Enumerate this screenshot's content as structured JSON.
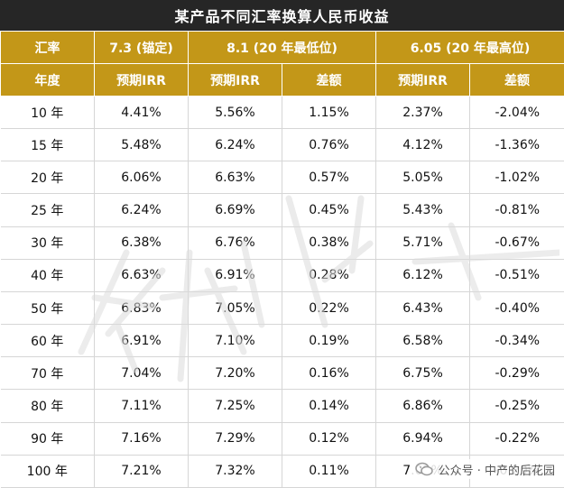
{
  "title": "某产品不同汇率换算人民币收益",
  "header": {
    "row1": [
      "汇率",
      "7.3 (锚定)",
      "8.1 (20 年最低位)",
      "6.05 (20 年最高位)"
    ],
    "row2": [
      "年度",
      "预期IRR",
      "预期IRR",
      "差额",
      "预期IRR",
      "差额"
    ]
  },
  "rows": [
    [
      "10 年",
      "4.41%",
      "5.56%",
      "1.15%",
      "2.37%",
      "-2.04%"
    ],
    [
      "15 年",
      "5.48%",
      "6.24%",
      "0.76%",
      "4.12%",
      "-1.36%"
    ],
    [
      "20 年",
      "6.06%",
      "6.63%",
      "0.57%",
      "5.05%",
      "-1.02%"
    ],
    [
      "25 年",
      "6.24%",
      "6.69%",
      "0.45%",
      "5.43%",
      "-0.81%"
    ],
    [
      "30 年",
      "6.38%",
      "6.76%",
      "0.38%",
      "5.71%",
      "-0.67%"
    ],
    [
      "40 年",
      "6.63%",
      "6.91%",
      "0.28%",
      "6.12%",
      "-0.51%"
    ],
    [
      "50 年",
      "6.83%",
      "7.05%",
      "0.22%",
      "6.43%",
      "-0.40%"
    ],
    [
      "60 年",
      "6.91%",
      "7.10%",
      "0.19%",
      "6.58%",
      "-0.34%"
    ],
    [
      "70 年",
      "7.04%",
      "7.20%",
      "0.16%",
      "6.75%",
      "-0.29%"
    ],
    [
      "80 年",
      "7.11%",
      "7.25%",
      "0.14%",
      "6.86%",
      "-0.25%"
    ],
    [
      "90 年",
      "7.16%",
      "7.29%",
      "0.12%",
      "6.94%",
      "-0.22%"
    ],
    [
      "100 年",
      "7.21%",
      "7.32%",
      "0.11%",
      "7.01%",
      "-0.20%"
    ]
  ],
  "footer": {
    "icon": "wechat-icon",
    "text": "公众号 · 中产的后花园"
  },
  "colors": {
    "title_bg": "#262626",
    "header_bg": "#c39718",
    "header_text": "#ffffff"
  }
}
